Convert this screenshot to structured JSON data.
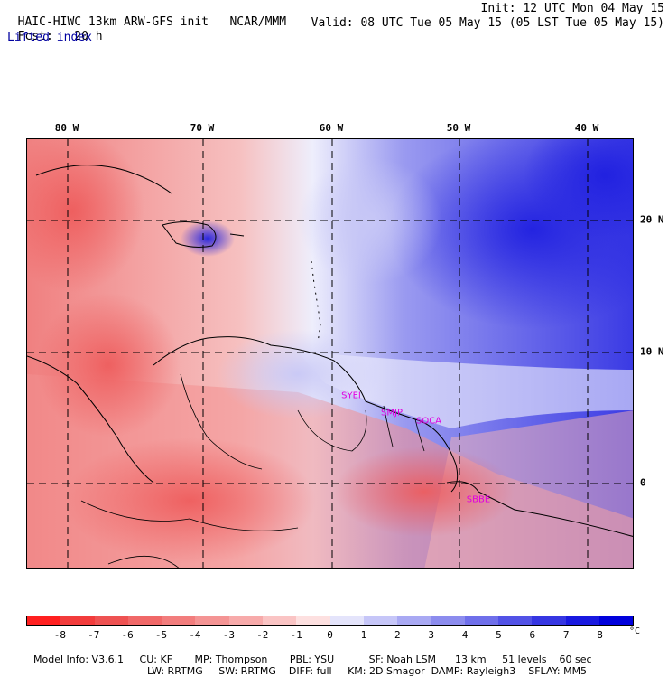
{
  "header": {
    "model": "HAIC-HIWC 13km ARW-GFS init",
    "org": "NCAR/MMM",
    "init": "Init: 12 UTC Mon 04 May 15",
    "fcst_label": "Fcst:",
    "fcst_value": "20 h",
    "valid": "Valid: 08 UTC Tue 05 May 15 (05 LST Tue 05 May 15)",
    "field": "Lifted index"
  },
  "map": {
    "lon_labels": [
      "80 W",
      "70 W",
      "60 W",
      "50 W",
      "40 W"
    ],
    "lat_labels": [
      "20 N",
      "10 N",
      "0"
    ],
    "cities": [
      {
        "name": "SYEI"
      },
      {
        "name": "SMJP"
      },
      {
        "name": "SOCA"
      },
      {
        "name": "SBBE"
      }
    ]
  },
  "colorbar": {
    "ticks": [
      "-8",
      "-7",
      "-6",
      "-5",
      "-4",
      "-3",
      "-2",
      "-1",
      "0",
      "1",
      "2",
      "3",
      "4",
      "5",
      "6",
      "7",
      "8"
    ],
    "unit": "°C",
    "colors": [
      "#ff2020",
      "#f23c3c",
      "#ee5252",
      "#f06868",
      "#f27d7d",
      "#f49494",
      "#f7aaaa",
      "#fac4c4",
      "#fde0e0",
      "#e4e4fb",
      "#c6c6f8",
      "#a9a9f3",
      "#8c8cee",
      "#6f6fea",
      "#5252e6",
      "#3636e2",
      "#1919e0",
      "#0000dc"
    ]
  },
  "footer": {
    "line1": [
      "Model Info: V3.6.1",
      "CU: KF",
      "MP: Thompson",
      "PBL: YSU",
      "SF: Noah LSM",
      "13 km",
      "51 levels",
      "60 sec"
    ],
    "line2": [
      "LW: RRTMG",
      "SW: RRTMG",
      "DIFF: full",
      "KM: 2D Smagor",
      "DAMP: Rayleigh3",
      "SFLAY: MM5"
    ]
  }
}
